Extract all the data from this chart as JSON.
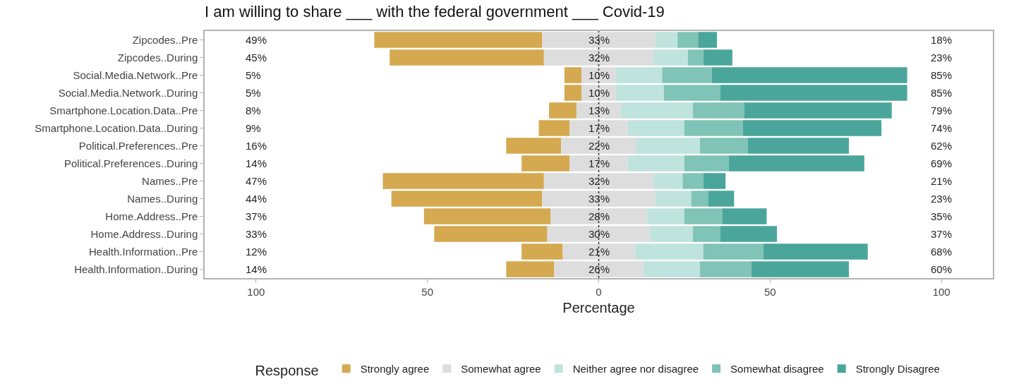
{
  "chart_data": {
    "type": "bar",
    "orientation": "horizontal",
    "title": "I am willing to share ___ with the federal government ___ Covid-19",
    "xlabel": "Percentage",
    "legend_title": "Response",
    "legend": "bottom",
    "categories": [
      "Zipcodes..Pre",
      "Zipcodes..During",
      "Social.Media.Network..Pre",
      "Social.Media.Network..During",
      "Smartphone.Location.Data..Pre",
      "Smartphone.Location.Data..During",
      "Political.Preferences..Pre",
      "Political.Preferences..During",
      "Names..Pre",
      "Names..During",
      "Home.Address..Pre",
      "Home.Address..During",
      "Health.Information..Pre",
      "Health.Information..During"
    ],
    "xlim": [
      -115,
      115
    ],
    "xticks": [
      {
        "value": -100,
        "label": "100"
      },
      {
        "value": -50,
        "label": "50"
      },
      0,
      50,
      100
    ],
    "ref_lines": [
      {
        "axis": "x",
        "value": 0,
        "line_style": "dotted",
        "color": "#333333"
      }
    ],
    "series": [
      {
        "name": "Strongly agree",
        "color": "#d4a94f",
        "base": [
          -65.5,
          -61,
          -10,
          -10,
          -14.5,
          -17.5,
          -27,
          -22.5,
          -63,
          -60.5,
          -51,
          -48,
          -22.5,
          -27
        ],
        "values": [
          49,
          45,
          5,
          5,
          8,
          9,
          16,
          14,
          47,
          44,
          37,
          33,
          12,
          14
        ]
      },
      {
        "name": "Somewhat agree",
        "color": "#dddddd",
        "base": [
          -16.5,
          -16,
          -5,
          -5,
          -6.5,
          -8.5,
          -11,
          -8.5,
          -16,
          -16.5,
          -14,
          -15,
          -10.5,
          -13
        ],
        "values": [
          33,
          32,
          10,
          10,
          13,
          17,
          22,
          17,
          32,
          33,
          28,
          30,
          21,
          26
        ],
        "value_labels": [
          "33%",
          "32%",
          "10%",
          "10%",
          "13%",
          "17%",
          "22%",
          "17%",
          "32%",
          "33%",
          "28%",
          "30%",
          "21%",
          "26%"
        ]
      },
      {
        "name": "Neither agree nor disagree",
        "color": "#bfe3dd",
        "base": [
          16.5,
          16,
          5,
          5,
          6.5,
          8.5,
          11,
          8.5,
          16,
          16.5,
          14,
          15,
          10.5,
          13
        ],
        "values": [
          6.5,
          10,
          13.5,
          14,
          21,
          16.5,
          18.5,
          16.5,
          8.5,
          10.5,
          11,
          12.5,
          20,
          16.5
        ]
      },
      {
        "name": "Somewhat disagree",
        "color": "#80c3b7",
        "base": [
          23,
          26,
          18.5,
          19,
          27.5,
          25,
          29.5,
          25,
          24.5,
          27,
          25,
          27.5,
          30.5,
          29.5
        ],
        "values": [
          6,
          4.5,
          14.5,
          16.5,
          15,
          17,
          14,
          13,
          6,
          5,
          11,
          8,
          17.5,
          15
        ]
      },
      {
        "name": "Strongly Disagree",
        "color": "#4aa69a",
        "base": [
          29,
          30.5,
          33,
          35.5,
          42.5,
          42,
          43.5,
          38,
          30.5,
          32,
          36,
          35.5,
          48,
          44.5
        ],
        "values": [
          5.5,
          8.5,
          57,
          54.5,
          43,
          40.5,
          29.5,
          39.5,
          6.5,
          7.5,
          13,
          16.5,
          30.5,
          28.5
        ]
      }
    ],
    "annotations": [
      "49%",
      "45%",
      "5%",
      "5%",
      "8%",
      "9%",
      "16%",
      "14%",
      "47%",
      "44%",
      "37%",
      "33%",
      "12%",
      "14%",
      "18%",
      "23%",
      "85%",
      "85%",
      "79%",
      "74%",
      "62%",
      "69%",
      "21%",
      "23%",
      "35%",
      "37%",
      "68%",
      "60%"
    ]
  }
}
